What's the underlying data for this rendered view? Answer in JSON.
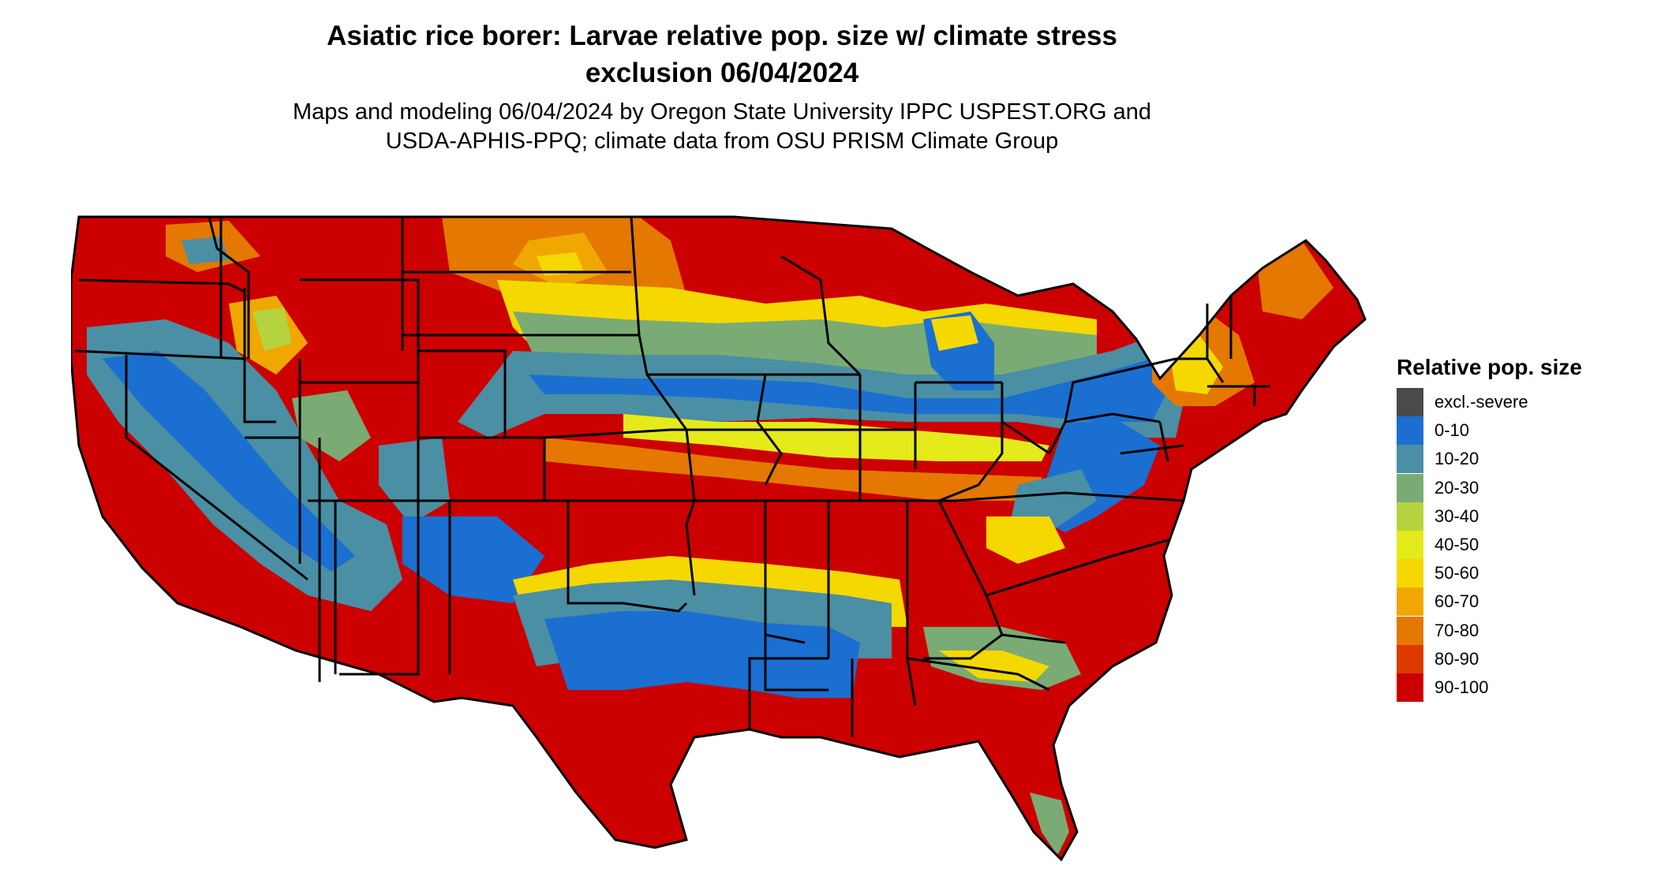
{
  "title_line1": "Asiatic rice borer: Larvae relative pop. size w/ climate stress",
  "title_line2": "exclusion 06/04/2024",
  "subtitle_line1": "Maps and modeling 06/04/2024 by Oregon State University IPPC USPEST.ORG and",
  "subtitle_line2": "USDA-APHIS-PPQ; climate data from OSU PRISM Climate Group",
  "legend": {
    "title": "Relative pop. size",
    "items": [
      {
        "label": "excl.-severe",
        "color": "#4a4a4a"
      },
      {
        "label": "0-10",
        "color": "#1a6fd1"
      },
      {
        "label": "10-20",
        "color": "#4a8fa4"
      },
      {
        "label": "20-30",
        "color": "#7aab74"
      },
      {
        "label": "30-40",
        "color": "#b5d33e"
      },
      {
        "label": "40-50",
        "color": "#e5ea1a"
      },
      {
        "label": "50-60",
        "color": "#f5d800"
      },
      {
        "label": "60-70",
        "color": "#f0a800"
      },
      {
        "label": "70-80",
        "color": "#e47800"
      },
      {
        "label": "80-90",
        "color": "#dc3a00"
      },
      {
        "label": "90-100",
        "color": "#cc0000"
      }
    ]
  }
}
